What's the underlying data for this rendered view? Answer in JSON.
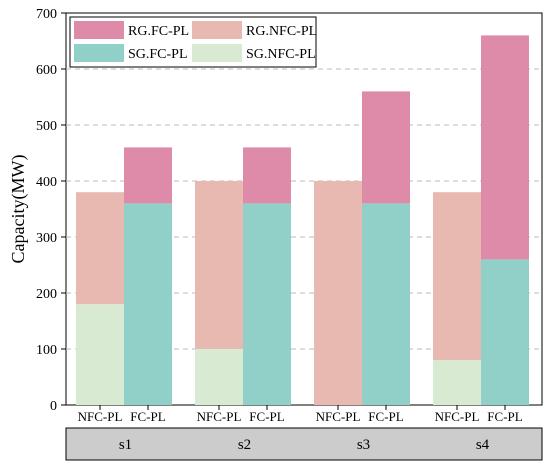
{
  "chart_data": {
    "type": "bar",
    "stacked": true,
    "ylabel": "Capacity(MW)",
    "ylim": [
      0,
      700
    ],
    "yticks": [
      0,
      100,
      200,
      300,
      400,
      500,
      600,
      700
    ],
    "grid": "horizontal dashed",
    "legend_placement": "top-left",
    "groups": [
      "s1",
      "s2",
      "s3",
      "s4"
    ],
    "categories": [
      "NFC-PL",
      "FC-PL",
      "NFC-PL",
      "FC-PL",
      "NFC-PL",
      "FC-PL",
      "NFC-PL",
      "FC-PL"
    ],
    "series": [
      {
        "name": "SG.NFC-PL",
        "color": "#d9ead3",
        "values": [
          180,
          0,
          100,
          0,
          0,
          0,
          80,
          0
        ]
      },
      {
        "name": "RG.NFC-PL",
        "color": "#e8b9b1",
        "values": [
          200,
          0,
          300,
          0,
          400,
          0,
          300,
          0
        ]
      },
      {
        "name": "SG.FC-PL",
        "color": "#91d0c8",
        "values": [
          0,
          360,
          0,
          360,
          0,
          360,
          0,
          260
        ]
      },
      {
        "name": "RG.FC-PL",
        "color": "#de8aa9",
        "values": [
          0,
          100,
          0,
          100,
          0,
          200,
          0,
          400
        ]
      }
    ],
    "legend_order": [
      "RG.FC-PL",
      "RG.NFC-PL",
      "SG.FC-PL",
      "SG.NFC-PL"
    ]
  }
}
